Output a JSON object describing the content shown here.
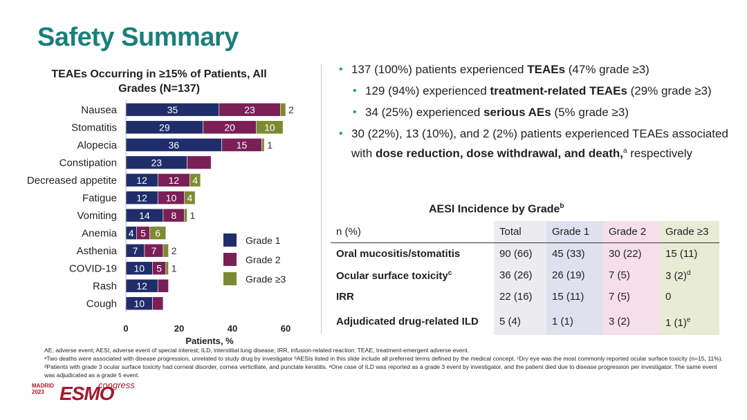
{
  "slide_title": "Safety Summary",
  "chart_data": {
    "type": "bar",
    "orientation": "horizontal",
    "stacked": true,
    "title": "TEAEs Occurring in ≥15% of Patients, All Grades (N=137)",
    "xlabel": "Patients, %",
    "xlim": [
      0,
      60
    ],
    "xticks": [
      "0",
      "20",
      "40",
      "60"
    ],
    "categories": [
      "Nausea",
      "Stomatitis",
      "Alopecia",
      "Constipation",
      "Decreased appetite",
      "Fatigue",
      "Vomiting",
      "Anemia",
      "Asthenia",
      "COVID-19",
      "Rash",
      "Cough"
    ],
    "series": [
      {
        "name": "Grade 1",
        "color": "#1f2d6b",
        "values": [
          35,
          29,
          36,
          23,
          12,
          12,
          14,
          4,
          7,
          10,
          12,
          10
        ],
        "labels": [
          "35",
          "29",
          "36",
          "23",
          "12",
          "12",
          "14",
          "4",
          "7",
          "10",
          "12",
          "10"
        ]
      },
      {
        "name": "Grade 2",
        "color": "#7b1f57",
        "values": [
          23,
          20,
          15,
          9,
          12,
          10,
          8,
          5,
          7,
          5,
          4,
          4
        ],
        "labels": [
          "23",
          "20",
          "15",
          "",
          "12",
          "10",
          "8",
          "5",
          "7",
          "5",
          "",
          ""
        ]
      },
      {
        "name": "Grade ≥3",
        "color": "#7d8a32",
        "values": [
          2,
          10,
          1,
          0,
          4,
          4,
          1,
          6,
          2,
          1,
          0,
          0
        ],
        "labels": [
          "2",
          "10",
          "1",
          "",
          "4",
          "4",
          "1",
          "6",
          "2",
          "1",
          "",
          ""
        ]
      }
    ],
    "legend_position": "right"
  },
  "bullets": [
    {
      "level": 1,
      "parts": [
        {
          "t": "137 (100%) patients experienced ",
          "b": false
        },
        {
          "t": "TEAEs",
          "b": true
        },
        {
          "t": " (47% grade ≥3)",
          "b": false
        }
      ]
    },
    {
      "level": 2,
      "parts": [
        {
          "t": "129 (94%) experienced ",
          "b": false
        },
        {
          "t": "treatment-related TEAEs",
          "b": true
        },
        {
          "t": " (29% grade ≥3)",
          "b": false
        }
      ]
    },
    {
      "level": 2,
      "parts": [
        {
          "t": "34 (25%) experienced ",
          "b": false
        },
        {
          "t": "serious AEs",
          "b": true
        },
        {
          "t": " (5% grade ≥3)",
          "b": false
        }
      ]
    },
    {
      "level": 1,
      "parts": [
        {
          "t": "30 (22%), 13 (10%), and 2 (2%) patients experienced TEAEs associated with ",
          "b": false
        },
        {
          "t": "dose reduction, dose withdrawal, and death,",
          "b": true
        },
        {
          "t": "a",
          "b": false,
          "sup": true
        },
        {
          "t": " respectively",
          "b": false
        }
      ]
    }
  ],
  "aesi_table": {
    "title": "AESI Incidence by Grade",
    "title_sup": "b",
    "headers": [
      "n (%)",
      "Total",
      "Grade 1",
      "Grade 2",
      "Grade ≥3"
    ],
    "rows": [
      {
        "label": "Oral mucositis/stomatitis",
        "label_sup": "",
        "cells": [
          "90 (66)",
          "45 (33)",
          "30 (22)",
          "15 (11)"
        ],
        "last_sup": ""
      },
      {
        "label": "Ocular surface toxicity",
        "label_sup": "c",
        "cells": [
          "36 (26)",
          "26 (19)",
          "7 (5)",
          "3 (2)"
        ],
        "last_sup": "d"
      },
      {
        "label": "IRR",
        "label_sup": "",
        "cells": [
          "22 (16)",
          "15 (11)",
          "7 (5)",
          "0"
        ],
        "last_sup": ""
      },
      {
        "label": "Adjudicated drug-related ILD",
        "label_sup": "",
        "cells": [
          "5 (4)",
          "1 (1)",
          "3 (2)",
          "1 (1)"
        ],
        "last_sup": "e"
      }
    ]
  },
  "footnotes": [
    "AE, adverse event; AESI, adverse event of special interest; ILD, interstitial lung disease; IRR, infusion-related reaction; TEAE, treatment-emergent adverse event.",
    "ᵃTwo deaths were associated with disease progression, unrelated to study drug by investigator ᵇAESIs listed in this slide include all preferred terms defined by the medical concept. ᶜDry eye was the most commonly reported ocular surface toxicity (n=15, 11%). ᵈPatients with grade 3 ocular surface toxicity had corneal disorder, cornea verticillate, and punctate keratitis. ᵉOne case of ILD was reported as a grade 3 event by investigator, and the patient died due to disease progression per investigator. The same event was adjudicated as a grade 5 event."
  ],
  "logo": {
    "city": "MADRID",
    "year": "2023",
    "brand": "ESMO",
    "word": "congress"
  }
}
